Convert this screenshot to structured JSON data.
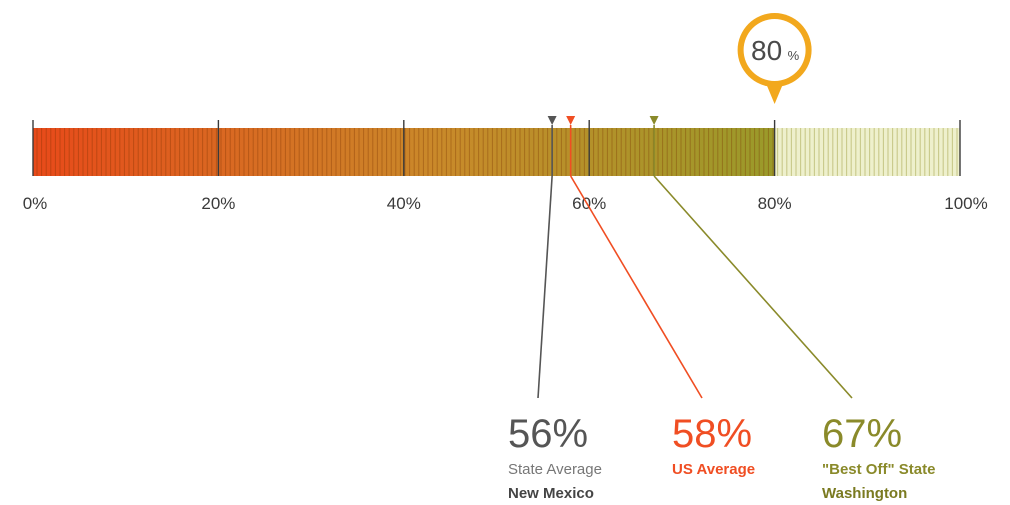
{
  "chart_data": {
    "type": "bar",
    "title": "",
    "xlabel": "",
    "ylabel": "",
    "xlim": [
      0,
      100
    ],
    "ticks": [
      "0%",
      "20%",
      "40%",
      "60%",
      "80%",
      "100%"
    ],
    "tick_values": [
      0,
      20,
      40,
      60,
      80,
      100
    ],
    "value": 80,
    "value_label": "80",
    "value_unit": "%",
    "markers": [
      {
        "value": 56,
        "percent_label": "56%",
        "line1": "State Average",
        "line2": "New Mexico",
        "color": "#555555",
        "label_color1": "#777777",
        "label_color2": "#444444"
      },
      {
        "value": 58,
        "percent_label": "58%",
        "line1": "US Average",
        "line2": "",
        "color": "#f04e23",
        "label_color1": "#f04e23",
        "label_color2": "#f04e23"
      },
      {
        "value": 67,
        "percent_label": "67%",
        "line1": "\"Best Off\" State",
        "line2": "Washington",
        "color": "#8a8a2a",
        "label_color1": "#8a8a2a",
        "label_color2": "#7a7a20"
      }
    ]
  },
  "colors": {
    "gradient_start": "#e84a1a",
    "gradient_mid": "#c98a2a",
    "gradient_end": "#9a9a2a",
    "remainder_fill": "#eef0cc",
    "remainder_stripe": "#c8c98a",
    "callout": "#f2a81d"
  }
}
